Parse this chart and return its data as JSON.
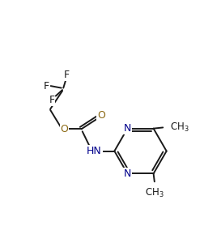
{
  "background_color": "#ffffff",
  "line_color": "#1a1a1a",
  "N_color": "#00008B",
  "O_color": "#8B6914",
  "F_color": "#1a1a1a",
  "figsize": [
    2.53,
    2.84
  ],
  "dpi": 100,
  "xlim": [
    0,
    10
  ],
  "ylim": [
    0,
    11.2
  ],
  "lw": 1.4,
  "fs": 9.0
}
